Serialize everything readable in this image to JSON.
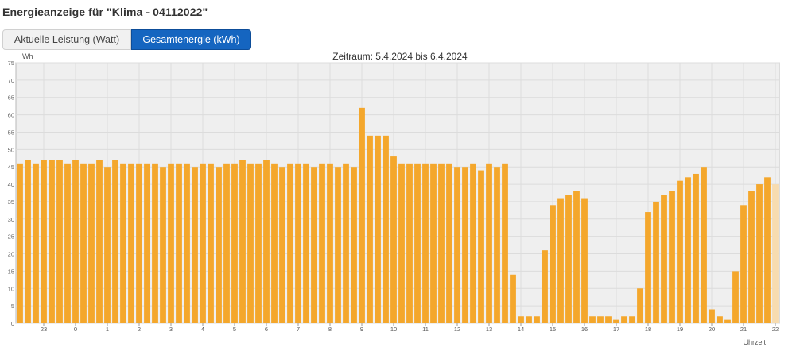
{
  "page": {
    "title": "Energieanzeige für \"Klima - 04112022\""
  },
  "tabs": [
    {
      "label": "Aktuelle Leistung (Watt)",
      "active": false
    },
    {
      "label": "Gesamtenergie (kWh)",
      "active": true
    }
  ],
  "colors": {
    "accent": "#1565c0",
    "bar": "#f4a72c",
    "bar_pending": "#f7dcb0",
    "plot_background": "#efefef"
  },
  "chart_data": {
    "type": "bar",
    "subtitle": "Zeitraum: 5.4.2024 bis 6.4.2024",
    "ylabel": "Wh",
    "xlabel": "Uhrzeit",
    "ylim": [
      0,
      75
    ],
    "yticks": [
      0,
      5,
      10,
      15,
      20,
      25,
      30,
      35,
      40,
      45,
      50,
      55,
      60,
      65,
      70,
      75
    ],
    "xticks": [
      {
        "label": "23",
        "index": 3
      },
      {
        "label": "0",
        "index": 7
      },
      {
        "label": "1",
        "index": 11
      },
      {
        "label": "2",
        "index": 15
      },
      {
        "label": "3",
        "index": 19
      },
      {
        "label": "4",
        "index": 23
      },
      {
        "label": "5",
        "index": 27
      },
      {
        "label": "6",
        "index": 31
      },
      {
        "label": "7",
        "index": 35
      },
      {
        "label": "8",
        "index": 39
      },
      {
        "label": "9",
        "index": 43
      },
      {
        "label": "10",
        "index": 47
      },
      {
        "label": "11",
        "index": 51
      },
      {
        "label": "12",
        "index": 55
      },
      {
        "label": "13",
        "index": 59
      },
      {
        "label": "14",
        "index": 63
      },
      {
        "label": "15",
        "index": 67
      },
      {
        "label": "16",
        "index": 71
      },
      {
        "label": "17",
        "index": 75
      },
      {
        "label": "18",
        "index": 79
      },
      {
        "label": "19",
        "index": 83
      },
      {
        "label": "20",
        "index": 87
      },
      {
        "label": "21",
        "index": 91
      },
      {
        "label": "22",
        "index": 95
      }
    ],
    "values": [
      46,
      47,
      46,
      47,
      47,
      47,
      46,
      47,
      46,
      46,
      47,
      45,
      47,
      46,
      46,
      46,
      46,
      46,
      45,
      46,
      46,
      46,
      45,
      46,
      46,
      45,
      46,
      46,
      47,
      46,
      46,
      47,
      46,
      45,
      46,
      46,
      46,
      45,
      46,
      46,
      45,
      46,
      45,
      62,
      54,
      54,
      54,
      48,
      46,
      46,
      46,
      46,
      46,
      46,
      46,
      45,
      45,
      46,
      44,
      46,
      45,
      46,
      14,
      2,
      2,
      2,
      21,
      34,
      36,
      37,
      38,
      36,
      2,
      2,
      2,
      1,
      2,
      2,
      10,
      32,
      35,
      37,
      38,
      41,
      42,
      43,
      45,
      4,
      2,
      1,
      15,
      34,
      38,
      40,
      42,
      40
    ],
    "pending_index": 95,
    "grid": true
  }
}
